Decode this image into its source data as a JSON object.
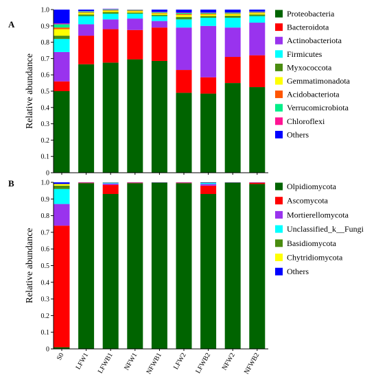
{
  "chart_data": [
    {
      "panel": "A",
      "type": "bar",
      "stacked": true,
      "ylabel": "Relative abundance",
      "ylim": [
        0,
        1.0
      ],
      "yticks": [
        "0",
        "0.1",
        "0.2",
        "0.3",
        "0.4",
        "0.5",
        "0.6",
        "0.7",
        "0.8",
        "0.9",
        "1.0"
      ],
      "categories": [
        "S0",
        "LFW1",
        "LFWB1",
        "NFW1",
        "NFWB1",
        "LFW2",
        "LFWB2",
        "NFW2",
        "NFWB2"
      ],
      "series": [
        {
          "name": "Proteobacteria",
          "color": "#006400",
          "values": [
            0.5,
            0.665,
            0.675,
            0.695,
            0.685,
            0.49,
            0.485,
            0.55,
            0.525
          ]
        },
        {
          "name": "Bacteroidota",
          "color": "#ff0000",
          "values": [
            0.06,
            0.175,
            0.205,
            0.18,
            0.205,
            0.14,
            0.1,
            0.16,
            0.195
          ]
        },
        {
          "name": "Actinobacteriota",
          "color": "#9933ee",
          "values": [
            0.18,
            0.07,
            0.06,
            0.07,
            0.04,
            0.26,
            0.315,
            0.18,
            0.2
          ]
        },
        {
          "name": "Firmicutes",
          "color": "#00ffff",
          "values": [
            0.08,
            0.05,
            0.035,
            0.03,
            0.03,
            0.05,
            0.05,
            0.06,
            0.04
          ]
        },
        {
          "name": "Myxococcota",
          "color": "#4a8c10",
          "values": [
            0.02,
            0.01,
            0.01,
            0.007,
            0.008,
            0.015,
            0.01,
            0.012,
            0.01
          ]
        },
        {
          "name": "Gemmatimonadota",
          "color": "#ffff00",
          "values": [
            0.04,
            0.01,
            0.008,
            0.008,
            0.008,
            0.012,
            0.01,
            0.01,
            0.008
          ]
        },
        {
          "name": "Acidobacteriota",
          "color": "#ff5500",
          "values": [
            0.01,
            0.004,
            0.004,
            0.004,
            0.004,
            0.006,
            0.005,
            0.004,
            0.004
          ]
        },
        {
          "name": "Verrucomicrobiota",
          "color": "#00ee88",
          "values": [
            0.02,
            0.005,
            0.004,
            0.004,
            0.004,
            0.006,
            0.005,
            0.005,
            0.004
          ]
        },
        {
          "name": "Chloroflexi",
          "color": "#ff1493",
          "values": [
            0.005,
            0.002,
            0.002,
            0.002,
            0.002,
            0.003,
            0.002,
            0.002,
            0.002
          ]
        },
        {
          "name": "Others",
          "color": "#0000ff",
          "values": [
            0.085,
            0.009,
            0.002,
            0.0,
            0.014,
            0.018,
            0.018,
            0.017,
            0.012
          ]
        }
      ]
    },
    {
      "panel": "B",
      "type": "bar",
      "stacked": true,
      "ylabel": "Relative abundance",
      "ylim": [
        0,
        1.0
      ],
      "yticks": [
        "0",
        "0.1",
        "0.2",
        "0.3",
        "0.4",
        "0.5",
        "0.6",
        "0.7",
        "0.8",
        "0.9",
        "1.0"
      ],
      "categories": [
        "S0",
        "LFW1",
        "LFWB1",
        "NFW1",
        "NFWB1",
        "LFW2",
        "LFWB2",
        "NFW2",
        "NFWB2"
      ],
      "series": [
        {
          "name": "Olpidiomycota",
          "color": "#006400",
          "values": [
            0.01,
            0.995,
            0.93,
            0.995,
            0.998,
            0.995,
            0.93,
            0.998,
            0.99
          ]
        },
        {
          "name": "Ascomycota",
          "color": "#ff0000",
          "values": [
            0.73,
            0.003,
            0.055,
            0.003,
            0.001,
            0.003,
            0.05,
            0.001,
            0.008
          ]
        },
        {
          "name": "Mortierellomycota",
          "color": "#9933ee",
          "values": [
            0.13,
            0.001,
            0.008,
            0.001,
            0.0,
            0.001,
            0.01,
            0.0,
            0.001
          ]
        },
        {
          "name": "Unclassified_k__Fungi",
          "color": "#00ffff",
          "values": [
            0.09,
            0.0,
            0.004,
            0.0,
            0.0,
            0.0,
            0.006,
            0.0,
            0.0
          ]
        },
        {
          "name": "Basidiomycota",
          "color": "#4a8c10",
          "values": [
            0.02,
            0.0,
            0.002,
            0.0,
            0.0,
            0.0,
            0.002,
            0.0,
            0.0
          ]
        },
        {
          "name": "Chytridiomycota",
          "color": "#ffff00",
          "values": [
            0.01,
            0.0,
            0.0,
            0.0,
            0.0,
            0.0,
            0.0,
            0.0,
            0.0
          ]
        },
        {
          "name": "Others",
          "color": "#0000ff",
          "values": [
            0.01,
            0.001,
            0.001,
            0.001,
            0.001,
            0.001,
            0.002,
            0.001,
            0.001
          ]
        }
      ]
    }
  ]
}
